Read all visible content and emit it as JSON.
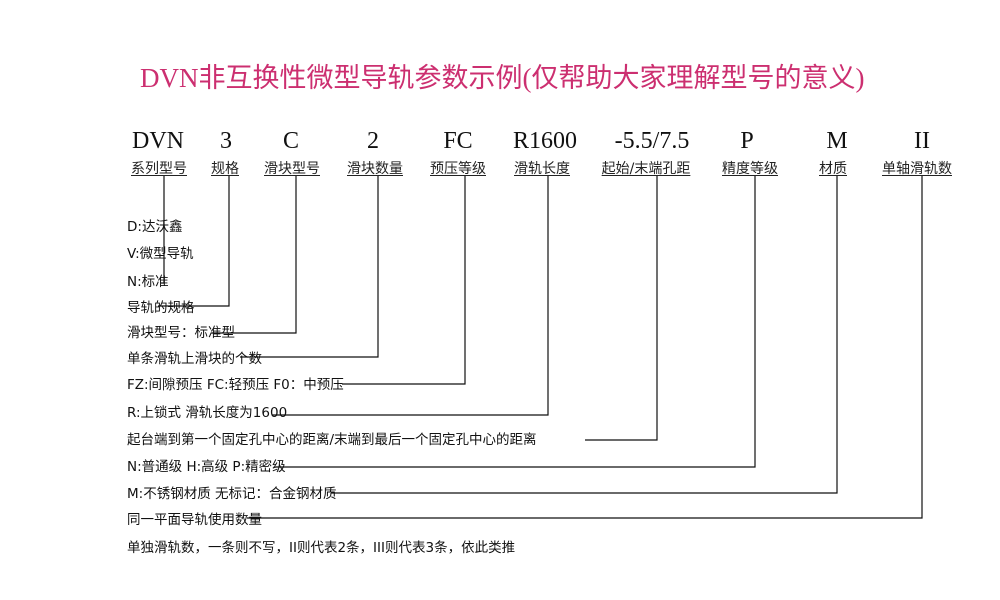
{
  "title": "DVN非互换性微型导轨参数示例(仅帮助大家理解型号的意义)",
  "codes": [
    {
      "code": "DVN",
      "label": "系列型号"
    },
    {
      "code": "3",
      "label": "规格"
    },
    {
      "code": "C",
      "label": "滑块型号"
    },
    {
      "code": "2",
      "label": "滑块数量"
    },
    {
      "code": "FC",
      "label": "预压等级"
    },
    {
      "code": "R1600",
      "label": "滑轨长度"
    },
    {
      "code": "-5.5/7.5",
      "label": "起始/末端孔距"
    },
    {
      "code": "P",
      "label": "精度等级"
    },
    {
      "code": "M",
      "label": "材质"
    },
    {
      "code": "II",
      "label": "单轴滑轨数"
    }
  ],
  "descriptions": [
    "D:达沃鑫",
    "V:微型导轨",
    "N:标准",
    "导轨的规格",
    "滑块型号：标准型",
    "单条滑轨上滑块的个数",
    "FZ:间隙预压 FC:轻预压 F0：中预压",
    "R:上锁式 滑轨长度为1600",
    "起台端到第一个固定孔中心的距离/末端到最后一个固定孔中心的距离",
    "N:普通级 H:高级 P:精密级",
    "M:不锈钢材质 无标记：合金钢材质",
    "同一平面导轨使用数量",
    "单独滑轨数，一条则不写，II则代表2条，III则代表3条，依此类推"
  ],
  "colors": {
    "title": "#cc2f70",
    "lines": "#111111"
  }
}
